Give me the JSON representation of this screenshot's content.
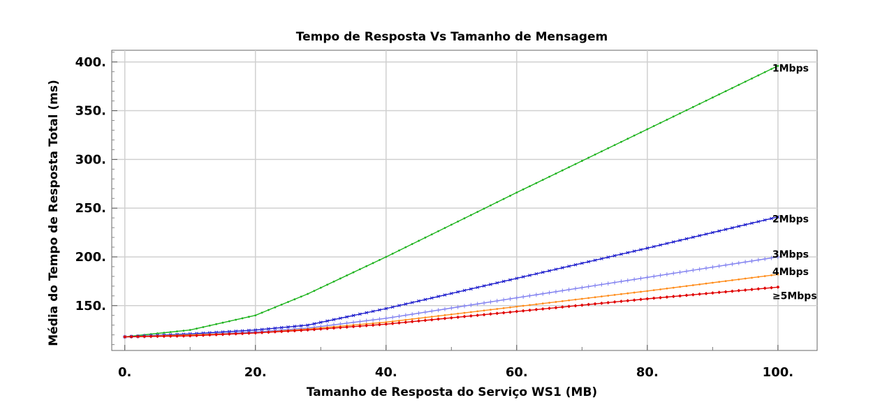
{
  "chart_data": {
    "type": "line",
    "title": "Tempo de Resposta Vs Tamanho de Mensagem",
    "xlabel": "Tamanho de Resposta do Serviço WS1 (MB)",
    "ylabel": "Média do Tempo de  Resposta Total (ms)",
    "xlim": [
      -2,
      106
    ],
    "ylim": [
      104,
      412
    ],
    "x_ticks": [
      0,
      20,
      40,
      60,
      80,
      100
    ],
    "x_tick_labels": [
      "0.",
      "20.",
      "40.",
      "60.",
      "80.",
      "100."
    ],
    "y_ticks": [
      150,
      200,
      250,
      300,
      350,
      400
    ],
    "y_tick_labels": [
      "150.",
      "200.",
      "250.",
      "300.",
      "350.",
      "400."
    ],
    "grid": true,
    "series": [
      {
        "name": "1Mbps",
        "color": "#1db31d",
        "marker": "dot",
        "points": [
          [
            0,
            118
          ],
          [
            10,
            125
          ],
          [
            20,
            140
          ],
          [
            28,
            162
          ],
          [
            40,
            200
          ],
          [
            60,
            266
          ],
          [
            80,
            331
          ],
          [
            100,
            396
          ]
        ]
      },
      {
        "name": "2Mbps",
        "color": "#1a1acc",
        "marker": "x",
        "points": [
          [
            0,
            118
          ],
          [
            10,
            121
          ],
          [
            20,
            125
          ],
          [
            28,
            130
          ],
          [
            40,
            147
          ],
          [
            60,
            178
          ],
          [
            80,
            209
          ],
          [
            100,
            241
          ]
        ]
      },
      {
        "name": "3Mbps",
        "color": "#8080f0",
        "marker": "plus",
        "points": [
          [
            0,
            118
          ],
          [
            10,
            120
          ],
          [
            20,
            123
          ],
          [
            28,
            127
          ],
          [
            40,
            137
          ],
          [
            60,
            158
          ],
          [
            80,
            179
          ],
          [
            100,
            200
          ]
        ]
      },
      {
        "name": "4Mbps",
        "color": "#ff8c1a",
        "marker": "dot",
        "points": [
          [
            0,
            118
          ],
          [
            10,
            120
          ],
          [
            20,
            122
          ],
          [
            28,
            126
          ],
          [
            40,
            133
          ],
          [
            60,
            149
          ],
          [
            80,
            165
          ],
          [
            100,
            182
          ]
        ]
      },
      {
        "name": "≥5Mbps",
        "color": "#e00000",
        "marker": "diamond",
        "points": [
          [
            0,
            118
          ],
          [
            10,
            119
          ],
          [
            20,
            122
          ],
          [
            28,
            125
          ],
          [
            40,
            131
          ],
          [
            60,
            144
          ],
          [
            80,
            157
          ],
          [
            100,
            169
          ]
        ]
      }
    ]
  }
}
